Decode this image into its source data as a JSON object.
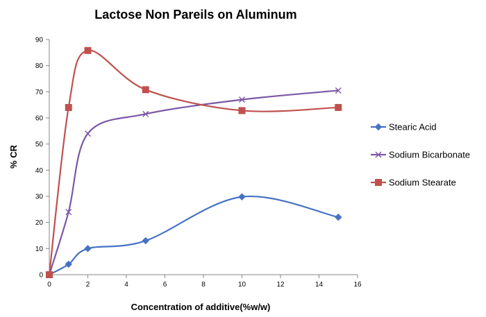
{
  "chart_data": {
    "type": "line",
    "title": "Lactose Non Pareils on Aluminum",
    "xlabel": "Concentration of additive(%w/w)",
    "ylabel": "% CR",
    "xlim": [
      0,
      16
    ],
    "ylim": [
      0,
      90
    ],
    "x_ticks": [
      "0",
      "2",
      "4",
      "6",
      "8",
      "10",
      "12",
      "14",
      "16"
    ],
    "y_ticks": [
      "0",
      "10",
      "20",
      "30",
      "40",
      "50",
      "60",
      "70",
      "80",
      "90"
    ],
    "grid": false,
    "legend_position": "right",
    "series": [
      {
        "name": "Stearic Acid",
        "color": "#4472c4",
        "marker": "diamond",
        "points": [
          {
            "x": 0,
            "y": 0
          },
          {
            "x": 1,
            "y": 4
          },
          {
            "x": 2,
            "y": 10
          },
          {
            "x": 5,
            "y": 13
          },
          {
            "x": 10,
            "y": 29.8
          },
          {
            "x": 15,
            "y": 22
          }
        ]
      },
      {
        "name": "Sodium Bicarbonate",
        "color": "#7b57a6",
        "marker": "x",
        "points": [
          {
            "x": 0,
            "y": 0
          },
          {
            "x": 1,
            "y": 24
          },
          {
            "x": 2,
            "y": 54
          },
          {
            "x": 5,
            "y": 61.5
          },
          {
            "x": 10,
            "y": 67
          },
          {
            "x": 15,
            "y": 70.5
          }
        ]
      },
      {
        "name": "Sodium Stearate",
        "color": "#c0504d",
        "marker": "square",
        "points": [
          {
            "x": 0,
            "y": 0
          },
          {
            "x": 1,
            "y": 64
          },
          {
            "x": 2,
            "y": 85.8
          },
          {
            "x": 5,
            "y": 70.8
          },
          {
            "x": 10,
            "y": 62.8
          },
          {
            "x": 15,
            "y": 64
          }
        ]
      }
    ]
  }
}
